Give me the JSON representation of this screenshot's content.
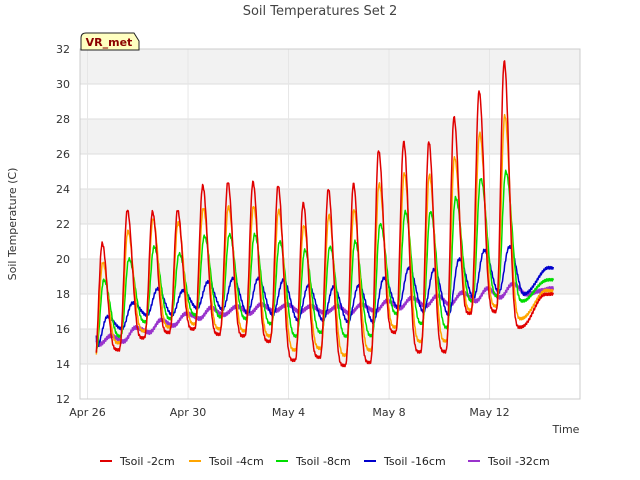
{
  "chart_data": {
    "type": "line",
    "title": "Soil Temperatures Set 2",
    "xlabel": "Time",
    "ylabel": "Soil Temperature (C)",
    "badge": "VR_met",
    "x_range_days": [
      "Apr 26",
      "May 15"
    ],
    "ylim": [
      12,
      32
    ],
    "yticks": [
      12,
      14,
      16,
      18,
      20,
      22,
      24,
      26,
      28,
      30,
      32
    ],
    "xticks": [
      {
        "day": 0,
        "label": "Apr 26"
      },
      {
        "day": 4,
        "label": "Apr 30"
      },
      {
        "day": 8,
        "label": "May 4"
      },
      {
        "day": 12,
        "label": "May 8"
      },
      {
        "day": 16,
        "label": "May 12"
      }
    ],
    "grid": true,
    "legend_position": "bottom",
    "day_x_values": [
      "Apr 26",
      "Apr 27",
      "Apr 28",
      "Apr 29",
      "Apr 30",
      "May 1",
      "May 2",
      "May 3",
      "May 4",
      "May 5",
      "May 6",
      "May 7",
      "May 8",
      "May 9",
      "May 10",
      "May 11",
      "May 12",
      "May 13",
      "May 14"
    ],
    "series": [
      {
        "name": "Tsoil -2cm",
        "color": "#e00000",
        "peak_hour": 14,
        "lag": 0.0,
        "sharp": 2.4,
        "daily_min": [
          13.8,
          14.8,
          15.5,
          15.8,
          16.0,
          15.7,
          15.6,
          15.3,
          14.2,
          14.4,
          13.9,
          14.1,
          15.8,
          14.7,
          14.7,
          16.9,
          17.0,
          16.1,
          18.0
        ],
        "daily_max": [
          20.9,
          22.8,
          22.7,
          22.8,
          24.2,
          24.4,
          24.4,
          24.2,
          23.2,
          24.0,
          24.3,
          26.2,
          26.7,
          26.7,
          28.1,
          29.6,
          31.3,
          0,
          0
        ]
      },
      {
        "name": "Tsoil -4cm",
        "color": "#ffa500",
        "peak_hour": 14.5,
        "lag": 0.02,
        "sharp": 2.0,
        "daily_min": [
          14.2,
          15.2,
          15.9,
          16.1,
          16.3,
          16.0,
          15.9,
          15.6,
          14.8,
          14.9,
          14.5,
          14.8,
          16.1,
          15.3,
          15.3,
          17.1,
          17.3,
          16.6,
          18.2
        ],
        "daily_max": [
          19.8,
          21.6,
          22.3,
          22.1,
          22.9,
          23.0,
          23.0,
          22.8,
          21.9,
          22.5,
          22.8,
          24.3,
          24.9,
          24.8,
          25.8,
          27.2,
          28.2,
          0,
          0
        ]
      },
      {
        "name": "Tsoil -8cm",
        "color": "#00dd00",
        "peak_hour": 15.5,
        "lag": 0.05,
        "sharp": 1.5,
        "daily_min": [
          14.6,
          15.6,
          16.4,
          16.6,
          16.8,
          16.7,
          16.6,
          16.3,
          15.6,
          15.8,
          15.6,
          15.6,
          16.9,
          16.3,
          16.1,
          17.6,
          17.9,
          17.6,
          18.8
        ],
        "daily_max": [
          18.8,
          20.0,
          20.7,
          20.3,
          21.3,
          21.4,
          21.4,
          21.0,
          20.5,
          20.7,
          21.0,
          22.0,
          22.7,
          22.7,
          23.5,
          24.6,
          25.0,
          0,
          0
        ]
      },
      {
        "name": "Tsoil -16cm",
        "color": "#0000cc",
        "peak_hour": 19,
        "lag": 0.12,
        "sharp": 1.0,
        "daily_min": [
          15.0,
          16.0,
          16.8,
          16.8,
          17.2,
          17.1,
          16.9,
          16.8,
          16.5,
          16.5,
          16.4,
          16.4,
          17.2,
          17.0,
          16.8,
          17.8,
          18.1,
          18.0,
          19.5
        ],
        "daily_max": [
          16.7,
          17.5,
          18.3,
          18.2,
          18.7,
          18.9,
          18.9,
          18.8,
          18.5,
          18.4,
          18.5,
          18.9,
          19.5,
          19.4,
          20.0,
          20.5,
          20.7,
          0,
          0
        ]
      },
      {
        "name": "Tsoil -32cm",
        "color": "#9933cc",
        "peak_hour": 22,
        "lag": 0.2,
        "sharp": 1.0,
        "daily_min": [
          15.1,
          15.3,
          15.8,
          16.2,
          16.6,
          16.8,
          16.9,
          17.0,
          17.0,
          16.9,
          16.9,
          17.0,
          17.2,
          17.3,
          17.4,
          17.6,
          17.8,
          18.0,
          18.3
        ],
        "daily_max": [
          15.6,
          16.1,
          16.5,
          16.9,
          17.2,
          17.3,
          17.4,
          17.4,
          17.3,
          17.3,
          17.4,
          17.6,
          17.8,
          17.9,
          18.1,
          18.3,
          18.6,
          0,
          0
        ]
      }
    ]
  }
}
